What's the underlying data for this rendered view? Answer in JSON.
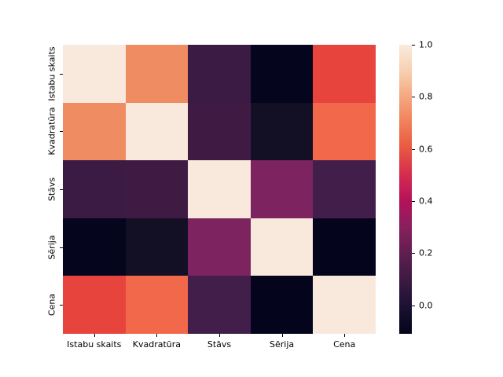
{
  "figure": {
    "background": "#ffffff",
    "text_color": "#000000"
  },
  "chart_data": {
    "type": "heatmap",
    "title": "",
    "xlabel": "",
    "ylabel": "",
    "colormap": "rocket",
    "grid": false,
    "legend": null,
    "categories": [
      "Istabu skaits",
      "Kvadratūra",
      "Stāvs",
      "Sērija",
      "Cena"
    ],
    "matrix": [
      [
        1.0,
        0.75,
        0.1,
        -0.08,
        0.55
      ],
      [
        0.75,
        1.0,
        0.12,
        -0.03,
        0.65
      ],
      [
        0.1,
        0.12,
        1.0,
        0.27,
        0.13
      ],
      [
        -0.08,
        -0.03,
        0.27,
        1.0,
        -0.11
      ],
      [
        0.55,
        0.65,
        0.13,
        -0.11,
        1.0
      ]
    ],
    "cell_colors": [
      [
        "#f9e9dd",
        "#f08c62",
        "#3b1a43",
        "#06051e",
        "#e8443e"
      ],
      [
        "#f08c62",
        "#f9e9dd",
        "#3f1b44",
        "#131026",
        "#f2684a"
      ],
      [
        "#3b1a43",
        "#3f1b44",
        "#f9e9dd",
        "#7c2360",
        "#421e4a"
      ],
      [
        "#06051e",
        "#131026",
        "#7c2360",
        "#f9e9dd",
        "#04051c"
      ],
      [
        "#e8443e",
        "#f2684a",
        "#421e4a",
        "#04051c",
        "#f9e9dd"
      ]
    ],
    "colorbar": {
      "vmin": -0.11,
      "vmax": 1.0,
      "tick_labels": [
        "1.0",
        "0.8",
        "0.6",
        "0.4",
        "0.2",
        "0.0"
      ],
      "tick_values": [
        1.0,
        0.8,
        0.6,
        0.4,
        0.2,
        0.0
      ],
      "gradient_stops_top_to_bottom": [
        {
          "pos": 0.0,
          "color": "#faebdd"
        },
        {
          "pos": 9.0,
          "color": "#f6d0b1"
        },
        {
          "pos": 18.0,
          "color": "#f5a77f"
        },
        {
          "pos": 27.0,
          "color": "#f0805a"
        },
        {
          "pos": 36.0,
          "color": "#e85740"
        },
        {
          "pos": 45.4,
          "color": "#d42a50"
        },
        {
          "pos": 54.3,
          "color": "#b3125b"
        },
        {
          "pos": 63.3,
          "color": "#88205c"
        },
        {
          "pos": 72.3,
          "color": "#5f1e50"
        },
        {
          "pos": 81.3,
          "color": "#3c1a42"
        },
        {
          "pos": 90.2,
          "color": "#1d1133"
        },
        {
          "pos": 100.0,
          "color": "#03051a"
        }
      ]
    }
  }
}
